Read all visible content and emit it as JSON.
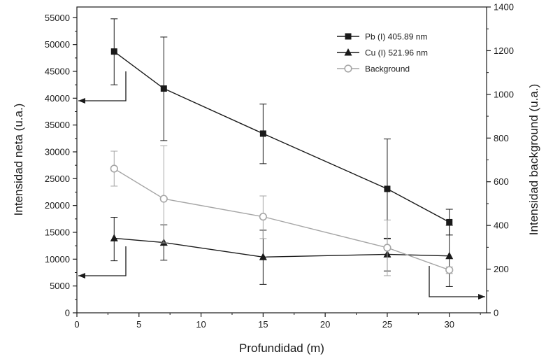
{
  "chart_data": {
    "type": "line",
    "xlabel": "Profundidad (m)",
    "ylabel_left": "Intensidad neta (u.a.)",
    "ylabel_right": "Intensidad background (u.a.)",
    "xlim": [
      0,
      33
    ],
    "ylim_left": [
      0,
      57000
    ],
    "ylim_right": [
      0,
      1400
    ],
    "x_ticks": [
      0,
      5,
      10,
      15,
      20,
      25,
      30
    ],
    "y_left_ticks": [
      0,
      5000,
      10000,
      15000,
      20000,
      25000,
      30000,
      35000,
      40000,
      45000,
      50000,
      55000
    ],
    "y_right_ticks": [
      0,
      200,
      400,
      600,
      800,
      1000,
      1200,
      1400
    ],
    "grid": false,
    "legend_position": "top-right",
    "series": [
      {
        "name": "Pb (I) 405.89 nm",
        "axis": "left",
        "marker": "square-filled",
        "color": "#1a1a1a",
        "x": [
          3,
          7,
          15,
          25,
          30
        ],
        "y": [
          48700,
          41800,
          33400,
          23100,
          16900
        ],
        "err_low": [
          42500,
          32100,
          27800,
          13800,
          14500
        ],
        "err_high": [
          54800,
          51400,
          38900,
          32400,
          19300
        ]
      },
      {
        "name": "Cu (I) 521.96 nm",
        "axis": "left",
        "marker": "triangle-filled",
        "color": "#1a1a1a",
        "x": [
          3,
          7,
          15,
          25,
          30
        ],
        "y": [
          13900,
          13100,
          10400,
          10900,
          10600
        ],
        "err_low": [
          9700,
          9800,
          5300,
          7800,
          4900
        ],
        "err_high": [
          17800,
          16400,
          15400,
          13900,
          16300
        ]
      },
      {
        "name": "Background",
        "axis": "right",
        "marker": "circle-open",
        "color": "#a6a6a6",
        "x": [
          3,
          7,
          15,
          25,
          30
        ],
        "y": [
          660,
          522,
          440,
          298,
          196
        ],
        "err_low": [
          580,
          320,
          340,
          170,
          180
        ],
        "err_high": [
          740,
          765,
          535,
          425,
          210
        ]
      }
    ]
  }
}
